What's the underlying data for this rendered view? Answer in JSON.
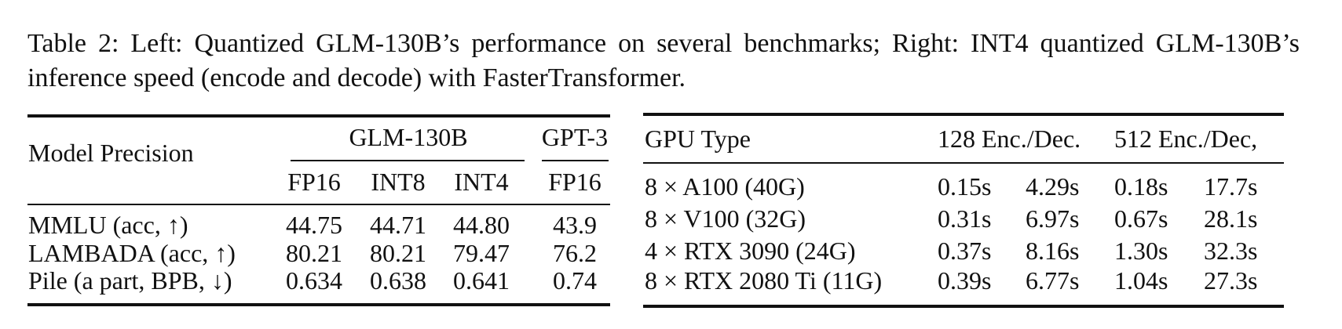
{
  "caption": "Table 2: Left: Quantized GLM-130B’s performance on several benchmarks; Right: INT4 quantized GLM-130B’s inference speed (encode and decode) with FasterTransformer.",
  "left_table": {
    "header": {
      "row_label": "Model Precision",
      "groups": [
        "GLM-130B",
        "GPT-3"
      ],
      "columns": [
        "FP16",
        "INT8",
        "INT4",
        "FP16"
      ]
    },
    "rows": [
      [
        "MMLU (acc, ↑)",
        "44.75",
        "44.71",
        "44.80",
        "43.9"
      ],
      [
        "LAMBADA (acc, ↑)",
        "80.21",
        "80.21",
        "79.47",
        "76.2"
      ],
      [
        "Pile (a part, BPB, ↓)",
        "0.634",
        "0.638",
        "0.641",
        "0.74"
      ]
    ]
  },
  "right_table": {
    "header": [
      "GPU Type",
      "128 Enc./Dec.",
      "512 Enc./Dec,"
    ],
    "rows": [
      [
        "8 × A100 (40G)",
        "0.15s",
        "4.29s",
        "0.18s",
        "17.7s"
      ],
      [
        "8 × V100 (32G)",
        "0.31s",
        "6.97s",
        "0.67s",
        "28.1s"
      ],
      [
        "4 × RTX 3090 (24G)",
        "0.37s",
        "8.16s",
        "1.30s",
        "32.3s"
      ],
      [
        "8 × RTX 2080 Ti (11G)",
        "0.39s",
        "6.77s",
        "1.04s",
        "27.3s"
      ]
    ]
  }
}
